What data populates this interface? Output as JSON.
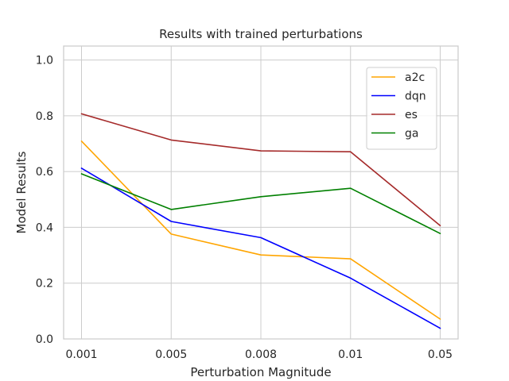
{
  "chart_data": {
    "type": "line",
    "title": "Results with trained perturbations",
    "xlabel": "Perturbation Magnitude",
    "ylabel": "Model Results",
    "categories": [
      "0.001",
      "0.005",
      "0.008",
      "0.01",
      "0.05"
    ],
    "ylim": [
      0.0,
      1.05
    ],
    "yticks": [
      0.0,
      0.2,
      0.4,
      0.6,
      0.8,
      1.0
    ],
    "ytick_labels": [
      "0.0",
      "0.2",
      "0.4",
      "0.6",
      "0.8",
      "1.0"
    ],
    "grid": true,
    "legend_position": "top-right",
    "series": [
      {
        "name": "a2c",
        "color": "#ffa500",
        "values": [
          0.709,
          0.376,
          0.301,
          0.287,
          0.071
        ]
      },
      {
        "name": "dqn",
        "color": "#0000ff",
        "values": [
          0.612,
          0.421,
          0.363,
          0.218,
          0.038
        ]
      },
      {
        "name": "es",
        "color": "#a52a2a",
        "values": [
          0.807,
          0.713,
          0.674,
          0.671,
          0.406
        ]
      },
      {
        "name": "ga",
        "color": "#008000",
        "values": [
          0.592,
          0.464,
          0.51,
          0.54,
          0.378
        ]
      }
    ]
  }
}
